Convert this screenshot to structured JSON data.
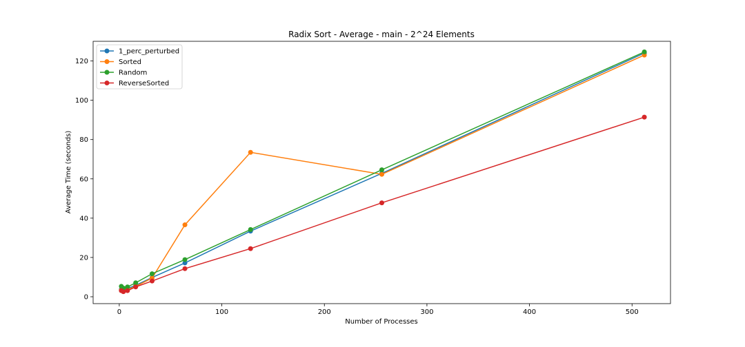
{
  "chart_data": {
    "type": "line",
    "title": "Radix Sort - Average - main - 2^24 Elements",
    "xlabel": "Number of Processes",
    "ylabel": "Average Time (seconds)",
    "xlim": [
      -25.5,
      537.5
    ],
    "ylim": [
      -3.5,
      130
    ],
    "xticks": [
      0,
      100,
      200,
      300,
      400,
      500
    ],
    "yticks": [
      0,
      20,
      40,
      60,
      80,
      100,
      120
    ],
    "legend_position": "top-left",
    "grid": false,
    "x": [
      2,
      4,
      8,
      16,
      32,
      64,
      128,
      256,
      512
    ],
    "series": [
      {
        "name": "1_perc_perturbed",
        "color": "#1f77b4",
        "values": [
          3.8,
          3.2,
          4.2,
          5.8,
          9.8,
          17.2,
          33.4,
          62.8,
          124.0
        ]
      },
      {
        "name": "Sorted",
        "color": "#ff7f0e",
        "values": [
          3.4,
          2.9,
          3.7,
          5.3,
          9.5,
          36.6,
          73.5,
          62.3,
          123.0
        ]
      },
      {
        "name": "Random",
        "color": "#2ca02c",
        "values": [
          5.3,
          4.4,
          5.0,
          7.1,
          11.7,
          18.9,
          34.2,
          64.6,
          124.6
        ]
      },
      {
        "name": "ReverseSorted",
        "color": "#d62728",
        "values": [
          3.1,
          2.6,
          3.1,
          5.0,
          8.0,
          14.3,
          24.5,
          47.8,
          91.4
        ]
      }
    ]
  }
}
